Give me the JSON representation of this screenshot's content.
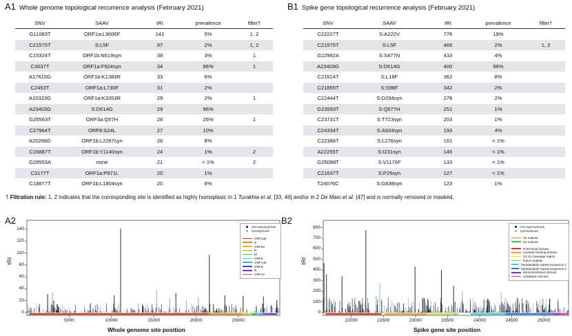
{
  "panelA1": {
    "label": "A1",
    "title": "Whole genome topological recurrence analysis (February 2021)",
    "headers": [
      "SNV",
      "SAAV",
      "tRI",
      "prevalence",
      "filter†"
    ],
    "rows": [
      [
        "G11083T",
        "ORF1a:L3606F",
        "141",
        "5%",
        "1, 2"
      ],
      [
        "C21575T",
        "S:L5F",
        "97",
        "2%",
        "1, 2"
      ],
      [
        "C15324T",
        "ORF1b:N619syn",
        "38",
        "3%",
        "1"
      ],
      [
        "C3037T",
        "ORF1a:F924syn",
        "34",
        "96%",
        "1"
      ],
      [
        "A17615G",
        "ORF1b:K1383R",
        "33",
        "6%",
        ""
      ],
      [
        "C2453T",
        "ORF1a:L730F",
        "31",
        "2%",
        ""
      ],
      [
        "A10323G",
        "ORF1a:K3353R",
        "29",
        "2%",
        "1"
      ],
      [
        "A23403G",
        "S:D614G",
        "29",
        "96%",
        ""
      ],
      [
        "G25563T",
        "ORF3a:Q57H",
        "28",
        "26%",
        "1"
      ],
      [
        "C27964T",
        "ORF8:S24L",
        "27",
        "10%",
        ""
      ],
      [
        "A20268G",
        "ORF1b:L2267syn",
        "26",
        "8%",
        ""
      ],
      [
        "C16887T",
        "ORF1b:Y1140syn",
        "24",
        "1%",
        "2"
      ],
      [
        "G29553A",
        "none",
        "21",
        "< 1%",
        "2"
      ],
      [
        "C3177T",
        "ORF1a:P971L",
        "20",
        "1%",
        ""
      ],
      [
        "C18877T",
        "ORF1b:L1804syn",
        "20",
        "6%",
        ""
      ]
    ]
  },
  "panelB1": {
    "label": "B1",
    "title": "Spike gene topological recurrence analysis (February 2021)",
    "headers": [
      "SNV",
      "SAAV",
      "tRI",
      "prevalence",
      "filter†"
    ],
    "rows": [
      [
        "C22227T",
        "S:A222V",
        "776",
        "19%",
        ""
      ],
      [
        "C21575T",
        "S:L5F",
        "466",
        "2%",
        "1, 2"
      ],
      [
        "G22992A",
        "S:S477N",
        "433",
        "4%",
        ""
      ],
      [
        "A23403G",
        "S:D614G",
        "400",
        "96%",
        ""
      ],
      [
        "C21614T",
        "S:L18F",
        "362",
        "8%",
        ""
      ],
      [
        "C21855T",
        "S:S98F",
        "342",
        "2%",
        ""
      ],
      [
        "C22444T",
        "S:D294syn",
        "276",
        "2%",
        ""
      ],
      [
        "G23593T",
        "S:Q677H",
        "251",
        "1%",
        ""
      ],
      [
        "C23731T",
        "S:T723syn",
        "203",
        "1%",
        ""
      ],
      [
        "C24334T",
        "S:A924syn",
        "193",
        "4%",
        ""
      ],
      [
        "C22388T",
        "S:L276syn",
        "161",
        "< 1%",
        ""
      ],
      [
        "A22255T",
        "S:I231syn",
        "145",
        "< 1%",
        ""
      ],
      [
        "G25088T",
        "S:V1176F",
        "133",
        "< 1%",
        ""
      ],
      [
        "C21637T",
        "S:P25syn",
        "127",
        "< 1%",
        ""
      ],
      [
        "T24076C",
        "S:G838syn",
        "123",
        "1%",
        ""
      ]
    ]
  },
  "footnote": {
    "prefix": "† ",
    "rule_label": "Filtration rule:",
    "text_a": " 1, 2 indicates that the corresponding site is identified as highly homoplasic in 1 ",
    "ref1": "Turakhia et al.",
    "text_b": " [33, 46] and/or in 2 ",
    "ref2": "De Maio et al.",
    "text_c": " [47] and is normally removed or masked."
  },
  "panelA2": {
    "label": "A2",
    "xlabel": "Whole genome site position",
    "ylabel": "tRI",
    "xticks": [
      "5000",
      "10000",
      "15000",
      "20000",
      "25000"
    ],
    "yticks": [
      "0",
      "20",
      "40",
      "60",
      "80",
      "100",
      "120",
      "140"
    ],
    "legend_points": [
      "non-synonymous",
      "synonymous"
    ],
    "legend_genes": [
      {
        "name": "ORF1ab",
        "color": "#e03020"
      },
      {
        "name": "S",
        "color": "#f08020"
      },
      {
        "name": "ORF3a",
        "color": "#e0c020"
      },
      {
        "name": "E",
        "color": "#c0e030"
      },
      {
        "name": "M",
        "color": "#40c040"
      },
      {
        "name": "ORF6",
        "color": "#40d0c0"
      },
      {
        "name": "ORF7ab",
        "color": "#40a0e0"
      },
      {
        "name": "ORF8",
        "color": "#3050d0"
      },
      {
        "name": "N",
        "color": "#8030c0"
      },
      {
        "name": "ORF10",
        "color": "#e030c0"
      }
    ]
  },
  "panelB2": {
    "label": "B2",
    "xlabel": "Spike gene site position",
    "ylabel": "tRI",
    "xticks": [
      "22000",
      "22500",
      "23000",
      "23500",
      "24000",
      "24500",
      "25000"
    ],
    "yticks": [
      "0",
      "100",
      "200",
      "300",
      "400",
      "500",
      "600",
      "700",
      "800"
    ],
    "legend_points": [
      "non-synonymous",
      "synonymous"
    ],
    "legend_subunits": [
      {
        "name": "S1 subunit",
        "color": "#f08020"
      },
      {
        "name": "S2 subunit",
        "color": "#40c040"
      }
    ],
    "legend_domains": [
      {
        "name": "N-terminal domain",
        "color": "#e03020"
      },
      {
        "name": "receptor-binding domain",
        "color": "#f0a030"
      },
      {
        "name": "S1-S2 cleavage region",
        "color": "#e0e040"
      },
      {
        "name": "fusion peptide",
        "color": "#80e040"
      },
      {
        "name": "heptapeptide repeat sequence 1",
        "color": "#40d0e0"
      },
      {
        "name": "heptapeptide repeat sequence 2",
        "color": "#3070e0"
      },
      {
        "name": "transmembrane domain",
        "color": "#8030c0"
      },
      {
        "name": "cytoplasm domain",
        "color": "#e030c0"
      }
    ]
  }
}
